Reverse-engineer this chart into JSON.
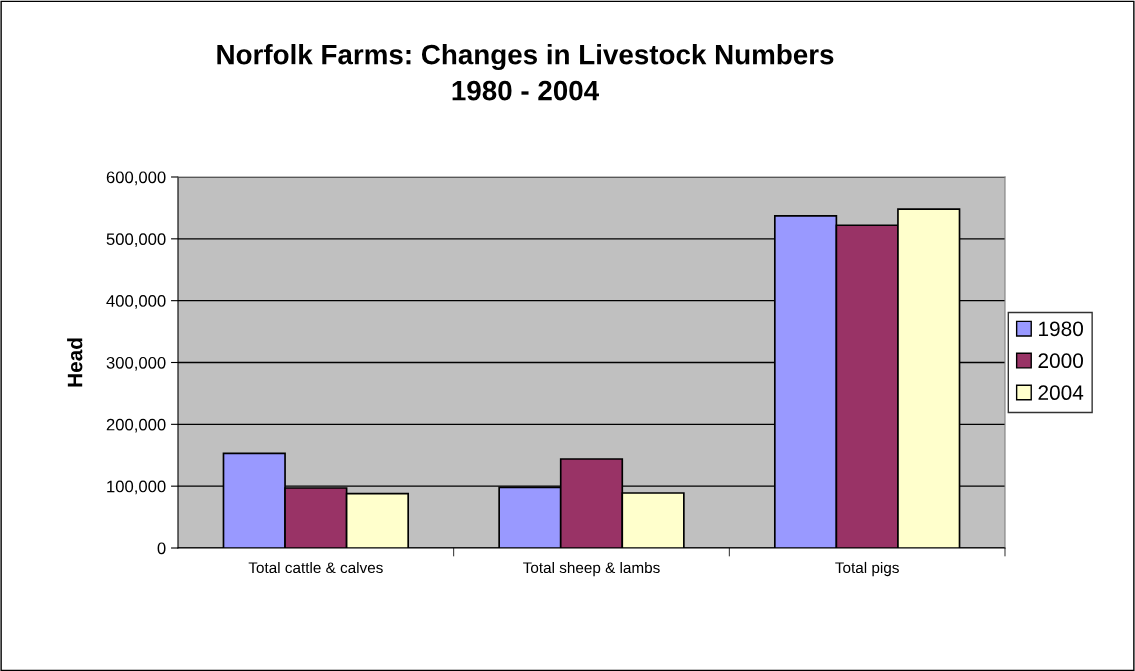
{
  "chart_data": {
    "type": "bar",
    "title": "Norfolk Farms: Changes in Livestock Numbers\n1980 - 2004",
    "ylabel": "Head",
    "categories": [
      "Total cattle & calves",
      "Total sheep & lambs",
      "Total pigs"
    ],
    "series": [
      {
        "name": "1980",
        "color": "#9999ff",
        "values": [
          153000,
          98000,
          537000
        ]
      },
      {
        "name": "2000",
        "color": "#993366",
        "values": [
          97000,
          144000,
          522000
        ]
      },
      {
        "name": "2004",
        "color": "#ffffcc",
        "values": [
          88000,
          89000,
          548000
        ]
      }
    ],
    "ylim": [
      0,
      600000
    ],
    "yticks": [
      {
        "value": 0,
        "label": "0"
      },
      {
        "value": 100000,
        "label": "100,000"
      },
      {
        "value": 200000,
        "label": "200,000"
      },
      {
        "value": 300000,
        "label": "300,000"
      },
      {
        "value": 400000,
        "label": "400,000"
      },
      {
        "value": 500000,
        "label": "500,000"
      },
      {
        "value": 600000,
        "label": "600,000"
      }
    ],
    "grid": "y",
    "legend": "right"
  }
}
